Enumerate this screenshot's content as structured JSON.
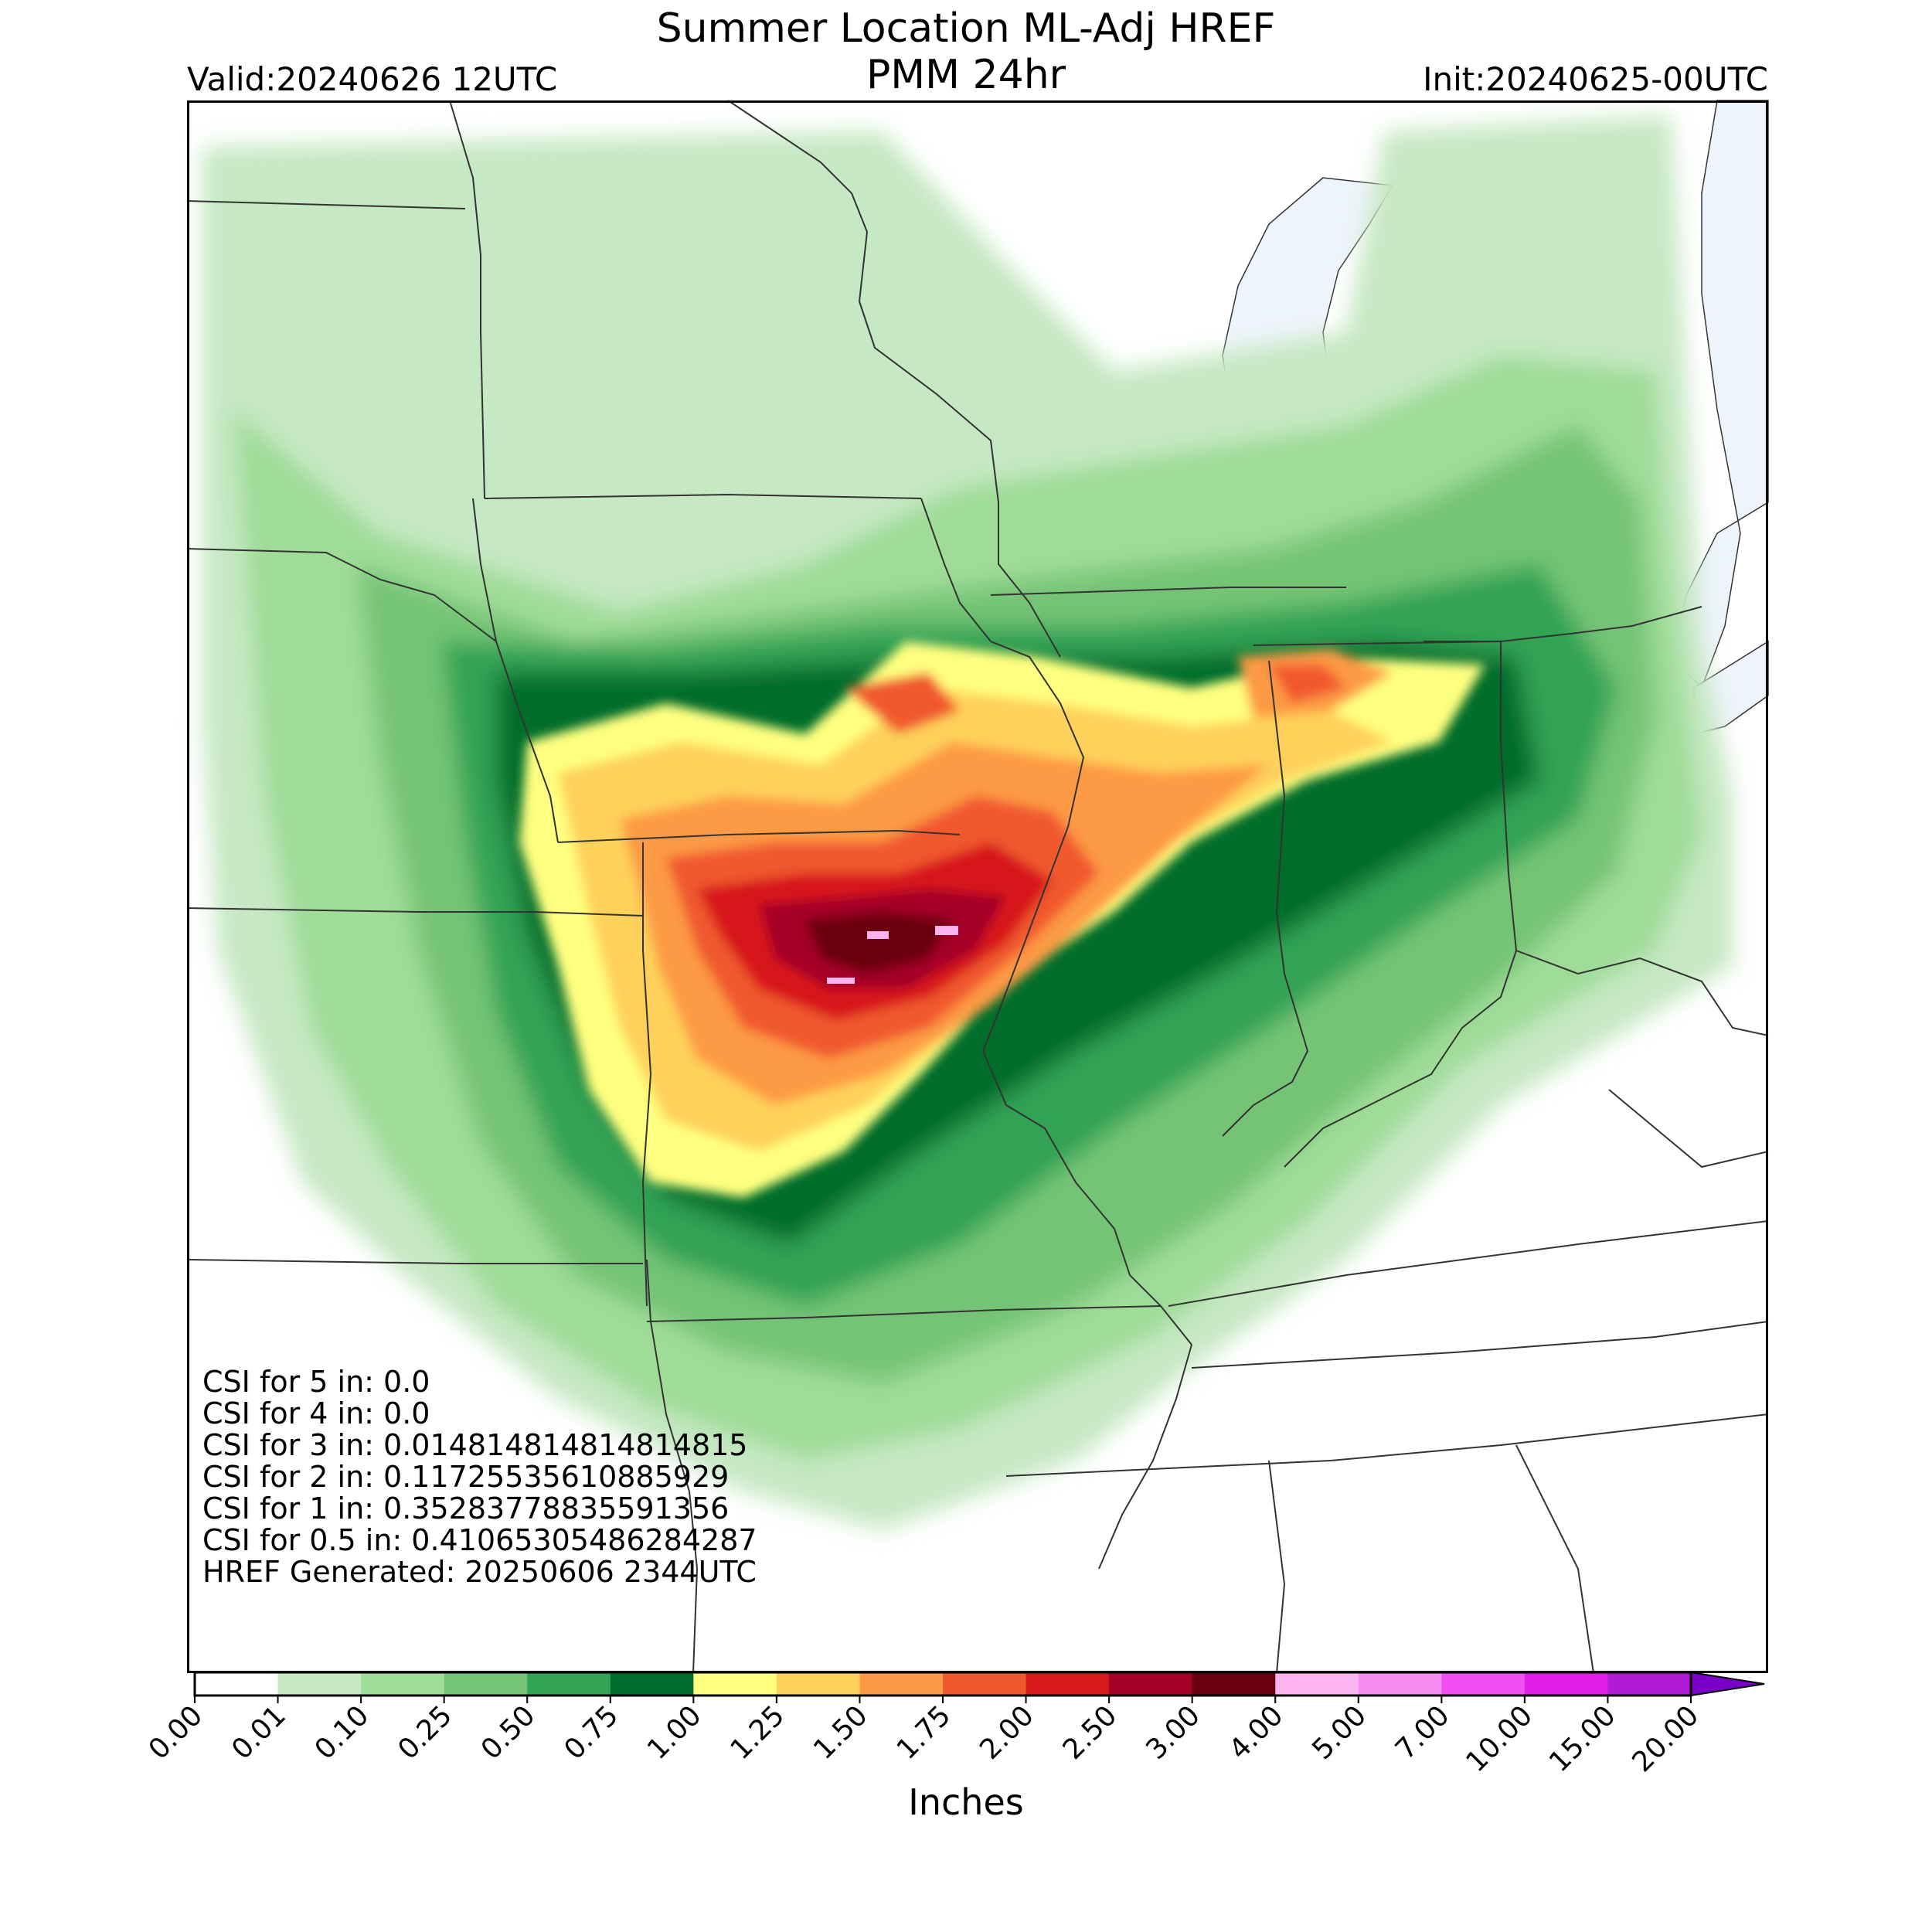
{
  "header": {
    "title_line1": "Summer Location ML-Adj HREF",
    "title_line2": "PMM 24hr",
    "valid": "Valid:20240626 12UTC",
    "init": "Init:20240625-00UTC"
  },
  "stats": [
    "CSI for 5 in: 0.0",
    "CSI for 4 in: 0.0",
    "CSI for 3 in: 0.014814814814814815",
    "CSI for 2 in: 0.11725535610885929",
    "CSI for 1 in: 0.35283778835591356",
    "CSI for 0.5 in: 0.41065305486284287",
    "HREF Generated: 20250606 2344UTC"
  ],
  "colorbar": {
    "label": "Inches",
    "ticks": [
      "0.00",
      "0.01",
      "0.10",
      "0.25",
      "0.50",
      "0.75",
      "1.00",
      "1.25",
      "1.50",
      "1.75",
      "2.00",
      "2.50",
      "3.00",
      "4.00",
      "5.00",
      "7.00",
      "10.00",
      "15.00",
      "20.00"
    ],
    "colors": [
      "#ffffff",
      "#c6e8c3",
      "#9fdc98",
      "#74c476",
      "#31a354",
      "#006d2c",
      "#ffff80",
      "#fed15a",
      "#fd9a45",
      "#f0582e",
      "#d7191c",
      "#a50026",
      "#6b0010",
      "#fbb4f0",
      "#f58cf0",
      "#f04ef0",
      "#e01ee8",
      "#b21ad8"
    ],
    "extend_color": "#7b00c8"
  },
  "legend_colors": {
    "water": "#eef4fb",
    "state_border": "#333333"
  }
}
